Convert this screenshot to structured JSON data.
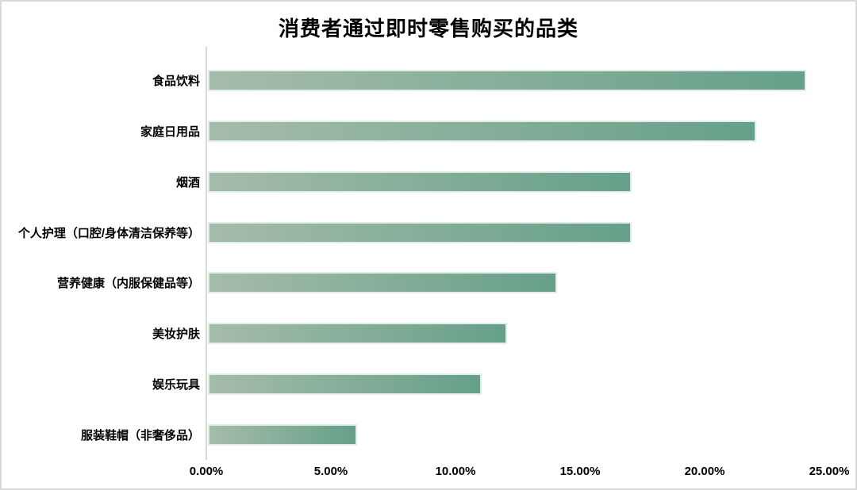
{
  "chart_data": {
    "type": "bar",
    "orientation": "horizontal",
    "title": "消费者通过即时零售购买的品类",
    "categories": [
      "食品饮料",
      "家庭日用品",
      "烟酒",
      "个人护理（口腔/身体清洁保养等）",
      "营养健康（内服保健品等）",
      "美妆护肤",
      "娱乐玩具",
      "服装鞋帽（非奢侈品）"
    ],
    "values": [
      24,
      22,
      17,
      17,
      14,
      12,
      11,
      6
    ],
    "unit": "%",
    "xlabel": "",
    "ylabel": "",
    "xlim": [
      0,
      25
    ],
    "x_tick_labels": [
      "0.00%",
      "5.00%",
      "10.00%",
      "15.00%",
      "20.00%",
      "25.00%"
    ],
    "grid": false,
    "legend": "none",
    "colors": {
      "bar_gradient_start": "#a5bcaa",
      "bar_gradient_end": "#66a089",
      "bar_border": "#e1eee7",
      "axis_line": "#d9d9d9",
      "frame_border": "#d9d9d9",
      "text": "#000000",
      "background": "#ffffff"
    }
  }
}
